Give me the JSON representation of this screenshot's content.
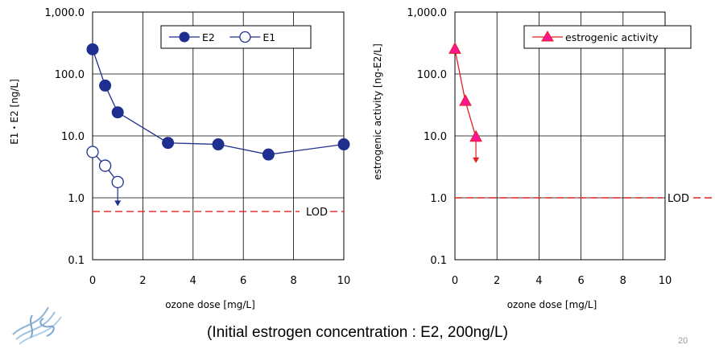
{
  "chart_data": [
    {
      "type": "line",
      "ylabel": "E1・E2 [ng/L]",
      "xlabel": "ozone dose [mg/L]",
      "yscale": "log",
      "ylim": [
        0.1,
        1000
      ],
      "xlim": [
        0,
        10
      ],
      "xticks": [
        "0",
        "2",
        "4",
        "6",
        "8",
        "10"
      ],
      "yticks": [
        "0.1",
        "1.0",
        "10.0",
        "100.0",
        "1,000.0"
      ],
      "grid": true,
      "legend_position": "top-right",
      "series": [
        {
          "name": "E2",
          "marker": "filled-circle",
          "color": "#1f2f8f",
          "x": [
            0,
            0.5,
            1,
            3,
            5,
            7,
            10
          ],
          "y": [
            250,
            65,
            24,
            7.7,
            7.3,
            5.0,
            7.3
          ]
        },
        {
          "name": "E1",
          "marker": "open-circle",
          "color": "#1f2f8f",
          "x": [
            0,
            0.5,
            1
          ],
          "y": [
            5.5,
            3.3,
            1.8
          ],
          "below_detection_at_x": 1
        }
      ],
      "lod": {
        "label": "LOD",
        "value": 0.6,
        "color": "#e02020"
      }
    },
    {
      "type": "line",
      "ylabel": "estrogenic activity [ng-E2/L]",
      "xlabel": "ozone dose [mg/L]",
      "yscale": "log",
      "ylim": [
        0.1,
        1000
      ],
      "xlim": [
        0,
        10
      ],
      "xticks": [
        "0",
        "2",
        "4",
        "6",
        "8",
        "10"
      ],
      "yticks": [
        "0.1",
        "1.0",
        "10.0",
        "100.0",
        "1,000.0"
      ],
      "grid": true,
      "legend_position": "top-right",
      "series": [
        {
          "name": "estrogenic activity",
          "marker": "triangle",
          "color": "#ff1493",
          "line_color": "#e02020",
          "x": [
            0,
            0.5,
            1
          ],
          "y": [
            250,
            36,
            9.5
          ],
          "below_detection_at_x": 1
        }
      ],
      "lod": {
        "label": "LOD",
        "value": 1.0,
        "color": "#e02020"
      }
    }
  ],
  "caption": "(Initial estrogen concentration : E2, 200ng/L)",
  "slide_number": "20",
  "logo": "js-logo-icon"
}
